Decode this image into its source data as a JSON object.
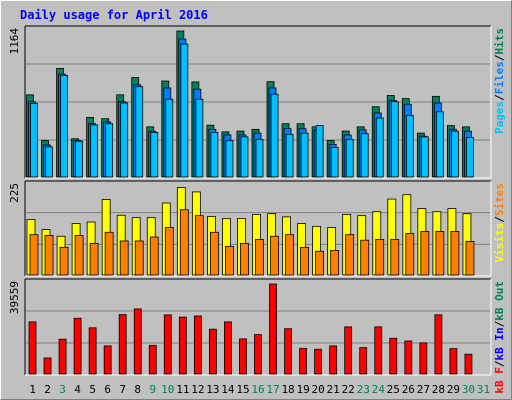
{
  "chart_data": [
    {
      "type": "bar",
      "title": "Daily usage for April 2016",
      "panel": "top",
      "ymax_label": "1164",
      "ylim": [
        0,
        1164
      ],
      "right_label": [
        "Pages",
        "/",
        "Files",
        "/",
        "Hits"
      ],
      "right_label_colors": [
        "#00c0ff",
        "#000000",
        "#0080ff",
        "#000000",
        "#00805c"
      ],
      "categories": [
        "1",
        "2",
        "3",
        "4",
        "5",
        "6",
        "7",
        "8",
        "9",
        "10",
        "11",
        "12",
        "13",
        "14",
        "15",
        "16",
        "17",
        "18",
        "19",
        "20",
        "21",
        "22",
        "23",
        "24",
        "25",
        "26",
        "27",
        "28",
        "29",
        "30",
        "31"
      ],
      "series": [
        {
          "name": "Hits",
          "color": "#00805c",
          "values": [
            655,
            290,
            866,
            305,
            475,
            465,
            655,
            793,
            400,
            765,
            1164,
            758,
            413,
            360,
            366,
            380,
            760,
            425,
            425,
            400,
            290,
            366,
            400,
            560,
            650,
            625,
            350,
            643,
            410,
            400,
            0
          ]
        },
        {
          "name": "Files",
          "color": "#0080ff",
          "values": [
            600,
            255,
            820,
            290,
            425,
            440,
            600,
            735,
            365,
            710,
            1100,
            700,
            380,
            335,
            335,
            350,
            710,
            385,
            385,
            375,
            260,
            335,
            375,
            510,
            610,
            580,
            325,
            590,
            380,
            365,
            0
          ]
        },
        {
          "name": "Pages",
          "color": "#00c0ff",
          "values": [
            585,
            240,
            810,
            285,
            415,
            425,
            590,
            720,
            355,
            620,
            1060,
            620,
            355,
            290,
            320,
            300,
            660,
            340,
            350,
            410,
            235,
            300,
            345,
            470,
            600,
            490,
            320,
            520,
            365,
            315,
            0
          ]
        }
      ]
    },
    {
      "type": "bar",
      "panel": "middle",
      "ymax_label": "225",
      "ylim": [
        0,
        225
      ],
      "right_label": [
        "Visits",
        "/",
        "Sites"
      ],
      "right_label_colors": [
        "#ffff00",
        "#000000",
        "#ff8000"
      ],
      "categories": [
        "1",
        "2",
        "3",
        "4",
        "5",
        "6",
        "7",
        "8",
        "9",
        "10",
        "11",
        "12",
        "13",
        "14",
        "15",
        "16",
        "17",
        "18",
        "19",
        "20",
        "21",
        "22",
        "23",
        "24",
        "25",
        "26",
        "27",
        "28",
        "29",
        "30",
        "31"
      ],
      "series": [
        {
          "name": "Visits",
          "color": "#ffff00",
          "values": [
            140,
            115,
            98,
            130,
            134,
            191,
            151,
            145,
            145,
            182,
            221,
            210,
            148,
            143,
            143,
            153,
            155,
            147,
            130,
            123,
            120,
            153,
            150,
            160,
            192,
            203,
            168,
            160,
            168,
            155,
            0
          ]
        },
        {
          "name": "Sites",
          "color": "#ff8000",
          "values": [
            102,
            100,
            70,
            100,
            80,
            108,
            86,
            86,
            96,
            120,
            165,
            150,
            108,
            72,
            80,
            90,
            98,
            102,
            70,
            60,
            62,
            102,
            88,
            90,
            90,
            105,
            110,
            110,
            110,
            85,
            0
          ]
        }
      ]
    },
    {
      "type": "bar",
      "panel": "bottom",
      "ymax_label": "39559",
      "ylim": [
        0,
        39559
      ],
      "right_label": [
        "kB F",
        "/",
        "kB In",
        "/",
        "kB Out"
      ],
      "right_label_colors": [
        "#ff0000",
        "#000000",
        "#0000ff",
        "#000000",
        "#00805c"
      ],
      "categories": [
        "1",
        "2",
        "3",
        "4",
        "5",
        "6",
        "7",
        "8",
        "9",
        "10",
        "11",
        "12",
        "13",
        "14",
        "15",
        "16",
        "17",
        "18",
        "19",
        "20",
        "21",
        "22",
        "23",
        "24",
        "25",
        "26",
        "27",
        "28",
        "29",
        "30",
        "31"
      ],
      "series": [
        {
          "name": "kB F",
          "color": "#ff0000",
          "values": [
            22900,
            7050,
            15300,
            24500,
            20300,
            12350,
            26100,
            28600,
            12600,
            26000,
            25000,
            25500,
            19700,
            22900,
            15450,
            17300,
            39559,
            19900,
            11300,
            10900,
            12350,
            20700,
            11600,
            20700,
            15700,
            14500,
            13700,
            26000,
            11150,
            8700,
            0
          ]
        }
      ]
    }
  ],
  "x_labels": [
    {
      "label": "1",
      "color": "#000000"
    },
    {
      "label": "2",
      "color": "#000000"
    },
    {
      "label": "3",
      "color": "#00805c"
    },
    {
      "label": "4",
      "color": "#000000"
    },
    {
      "label": "5",
      "color": "#000000"
    },
    {
      "label": "6",
      "color": "#000000"
    },
    {
      "label": "7",
      "color": "#000000"
    },
    {
      "label": "8",
      "color": "#000000"
    },
    {
      "label": "9",
      "color": "#00805c"
    },
    {
      "label": "10",
      "color": "#00805c"
    },
    {
      "label": "11",
      "color": "#000000"
    },
    {
      "label": "12",
      "color": "#000000"
    },
    {
      "label": "13",
      "color": "#000000"
    },
    {
      "label": "14",
      "color": "#000000"
    },
    {
      "label": "15",
      "color": "#000000"
    },
    {
      "label": "16",
      "color": "#00805c"
    },
    {
      "label": "17",
      "color": "#00805c"
    },
    {
      "label": "18",
      "color": "#000000"
    },
    {
      "label": "19",
      "color": "#000000"
    },
    {
      "label": "20",
      "color": "#000000"
    },
    {
      "label": "21",
      "color": "#000000"
    },
    {
      "label": "22",
      "color": "#000000"
    },
    {
      "label": "23",
      "color": "#00805c"
    },
    {
      "label": "24",
      "color": "#00805c"
    },
    {
      "label": "25",
      "color": "#000000"
    },
    {
      "label": "26",
      "color": "#000000"
    },
    {
      "label": "27",
      "color": "#000000"
    },
    {
      "label": "28",
      "color": "#000000"
    },
    {
      "label": "29",
      "color": "#000000"
    },
    {
      "label": "30",
      "color": "#00805c"
    },
    {
      "label": "31",
      "color": "#00805c"
    }
  ],
  "colors": {
    "background": "#c0c0c0",
    "title": "#0000ff",
    "gridline": "#808080",
    "border_dark": "#000000"
  }
}
